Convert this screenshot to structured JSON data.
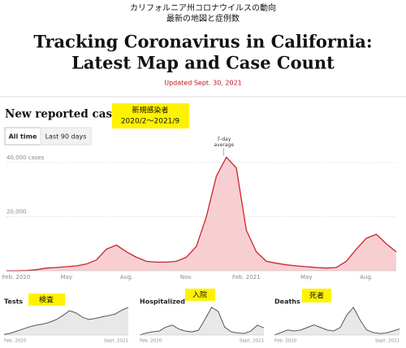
{
  "header": {
    "lines": [
      "カリフォルニア州コロナウイルスの動向",
      "最新の地図と症例数"
    ],
    "title_lines": [
      "Tracking Coronavirus in California:",
      "Latest Map and Case Count"
    ],
    "updated": "Updated Sept. 30, 2021"
  },
  "section_title": "New reported cases",
  "buttons": [
    "All time",
    "Last 90 days"
  ],
  "overlays": {
    "cases": [
      "新規感染者",
      "2020/2～2021/9"
    ],
    "tests": "検査",
    "hospitalized": "入院",
    "deaths": "死者"
  },
  "chart_data": [
    {
      "type": "area",
      "annotation": [
        "7-day",
        "average"
      ],
      "categories": [
        "Feb. 2020",
        null,
        null,
        null,
        null,
        null,
        "May",
        null,
        null,
        null,
        null,
        null,
        "Aug.",
        null,
        null,
        null,
        null,
        null,
        "Nov.",
        null,
        null,
        null,
        null,
        null,
        "Feb. 2021",
        null,
        null,
        null,
        null,
        null,
        "May",
        null,
        null,
        null,
        null,
        null,
        "Aug.",
        null,
        null,
        null
      ],
      "values": [
        0,
        0,
        100,
        400,
        1000,
        1200,
        1500,
        1800,
        2500,
        4000,
        8000,
        9500,
        7000,
        5000,
        3500,
        3200,
        3200,
        3500,
        5000,
        9000,
        20000,
        35000,
        42000,
        38000,
        15000,
        7000,
        3500,
        2800,
        2200,
        1800,
        1500,
        1200,
        1000,
        1200,
        3500,
        8000,
        12000,
        13500,
        10000,
        7000
      ],
      "color": "#c7262b",
      "fill": "#f7cfd2",
      "ylim": [
        0,
        46000
      ],
      "yticks": [
        {
          "value": 20000,
          "label": "20,000"
        },
        {
          "value": 40000,
          "label": "40,000 cases"
        }
      ],
      "grid": true
    },
    {
      "type": "line",
      "title": "Tests",
      "categories": [
        "Feb. 2020",
        null,
        null,
        null,
        null,
        null,
        null,
        null,
        null,
        null,
        null,
        null,
        null,
        null,
        null,
        null,
        null,
        null,
        null,
        "Sept. 2021"
      ],
      "values": [
        2,
        8,
        18,
        28,
        38,
        45,
        50,
        58,
        70,
        88,
        110,
        100,
        80,
        70,
        75,
        82,
        88,
        95,
        112,
        125
      ],
      "color": "#444",
      "fill": "#e8e8e8"
    },
    {
      "type": "line",
      "title": "Hospitalized",
      "categories": [
        "Feb. 2020",
        null,
        null,
        null,
        null,
        null,
        null,
        null,
        null,
        null,
        null,
        null,
        null,
        null,
        null,
        null,
        null,
        null,
        null,
        "Sept. 2021"
      ],
      "values": [
        0,
        5,
        8,
        10,
        20,
        25,
        15,
        10,
        8,
        12,
        40,
        70,
        60,
        20,
        8,
        5,
        4,
        10,
        25,
        18
      ],
      "color": "#444",
      "fill": "#e8e8e8"
    },
    {
      "type": "line",
      "title": "Deaths",
      "categories": [
        "Feb. 2020",
        null,
        null,
        null,
        null,
        null,
        null,
        null,
        null,
        null,
        null,
        null,
        null,
        null,
        null,
        null,
        null,
        null,
        null,
        "Sept. 2021"
      ],
      "values": [
        0,
        5,
        10,
        8,
        10,
        15,
        20,
        15,
        10,
        8,
        15,
        40,
        55,
        30,
        10,
        5,
        3,
        4,
        8,
        12
      ],
      "color": "#444",
      "fill": "#e8e8e8"
    }
  ]
}
